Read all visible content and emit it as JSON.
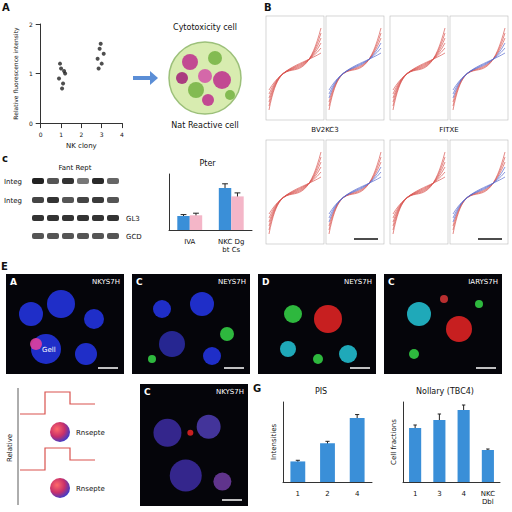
{
  "panel_letters": [
    "A",
    "B",
    "c",
    "E",
    "G"
  ],
  "schematic": {
    "title": "Cytotoxicity cell",
    "label": "Nat Reactive cell"
  },
  "traces": {
    "labels": [
      "BV2KC3",
      "FITXE"
    ]
  },
  "blot": {
    "title": "Fant Rept",
    "row_labels": [
      "Integ",
      "Integ"
    ],
    "side_labels": [
      "GL3",
      "GCD"
    ]
  },
  "micrographs": [
    {
      "letter": "A",
      "title": "NKYS7H",
      "label": "Gell"
    },
    {
      "letter": "C",
      "title": "NEYS7H"
    },
    {
      "letter": "D",
      "title": "NEYS7H"
    },
    {
      "letter": "C",
      "title": "IARYS7H"
    },
    {
      "letter": "C",
      "title": "NKYS7H"
    }
  ],
  "step_diagram": {
    "ylabel": "Relative",
    "labels": [
      "Rnsepte",
      "Rnsepte"
    ]
  },
  "chart_data": [
    {
      "type": "scatter",
      "xlabel": "NK clony",
      "ylabel": "Relative fluorescence intensity",
      "x": [
        0.9,
        1.0,
        1.1,
        1.2,
        0.95,
        1.05,
        1.15,
        2.8,
        2.9,
        3.0,
        3.1,
        2.85,
        2.95
      ],
      "values": [
        0.9,
        1.1,
        0.8,
        1.0,
        1.2,
        0.7,
        1.05,
        1.3,
        1.5,
        1.2,
        1.4,
        1.1,
        1.6
      ],
      "color": "#222222",
      "marker": "circle",
      "xlim": [
        0,
        4
      ],
      "xticks": [
        0,
        1,
        2,
        3,
        4
      ],
      "ylim": [
        0,
        2
      ],
      "yticks": [
        0,
        1,
        2
      ],
      "grid": false
    },
    {
      "type": "bar",
      "title": "Pter",
      "categories": [
        "IVA",
        "NKC Dg bt Cs"
      ],
      "series": [
        {
          "color": "#3a8fd8",
          "values": [
            2.0,
            6.0
          ],
          "errors": [
            0.2,
            0.6
          ]
        },
        {
          "color": "#f4b6c8",
          "values": [
            2.1,
            4.8
          ],
          "errors": [
            0.3,
            0.5
          ]
        }
      ],
      "ylim": [
        0,
        8
      ],
      "tick_labels": "x",
      "grid": false
    },
    {
      "type": "bar",
      "title": "PIS",
      "ylabel": "Intensities",
      "categories": [
        "1",
        "2",
        "4"
      ],
      "series": [
        {
          "color": "#3a8fd8",
          "values": [
            0.9,
            1.7,
            2.8
          ],
          "errors": [
            0.05,
            0.08,
            0.15
          ]
        }
      ],
      "ylim": [
        0,
        3.5
      ],
      "tick_labels": "x",
      "grid": false
    },
    {
      "type": "bar",
      "title": "Nollary (TBC4)",
      "ylabel": "Cell fractions",
      "categories": [
        "1",
        "3",
        "4",
        "NKC Dbl"
      ],
      "series": [
        {
          "color": "#3a8fd8",
          "values": [
            2.7,
            3.1,
            3.6,
            1.6
          ],
          "errors": [
            0.15,
            0.3,
            0.25,
            0.05
          ]
        }
      ],
      "ylim": [
        0,
        4
      ],
      "tick_labels": "x",
      "grid": false
    }
  ]
}
